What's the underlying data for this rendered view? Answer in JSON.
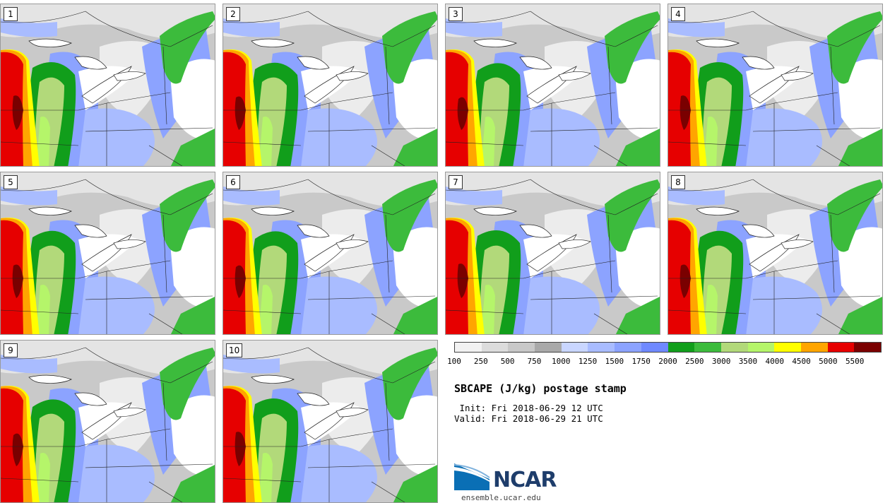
{
  "title": "SBCAPE (J/kg) postage stamp",
  "init": " Init: Fri 2018-06-29 12 UTC",
  "valid": "Valid: Fri 2018-06-29 21 UTC",
  "logo_text": "NCAR",
  "logo_url": "ensemble.ucar.edu",
  "members": [
    "1",
    "2",
    "3",
    "4",
    "5",
    "6",
    "7",
    "8",
    "9",
    "10"
  ],
  "colorbar": {
    "ticks": [
      "100",
      "250",
      "500",
      "750",
      "1000",
      "1250",
      "1500",
      "1750",
      "2000",
      "2500",
      "3000",
      "3500",
      "4000",
      "4500",
      "5000",
      "5500"
    ],
    "colors": [
      "#f2f2f2",
      "#dcdcdc",
      "#c8c8c8",
      "#a9a9a9",
      "#c9d6ff",
      "#a9bcff",
      "#8ca3ff",
      "#6f89ff",
      "#119e1b",
      "#3cbb3c",
      "#b2d97a",
      "#b5f56a",
      "#ffff00",
      "#ffa500",
      "#e60000",
      "#7a0000"
    ]
  }
}
